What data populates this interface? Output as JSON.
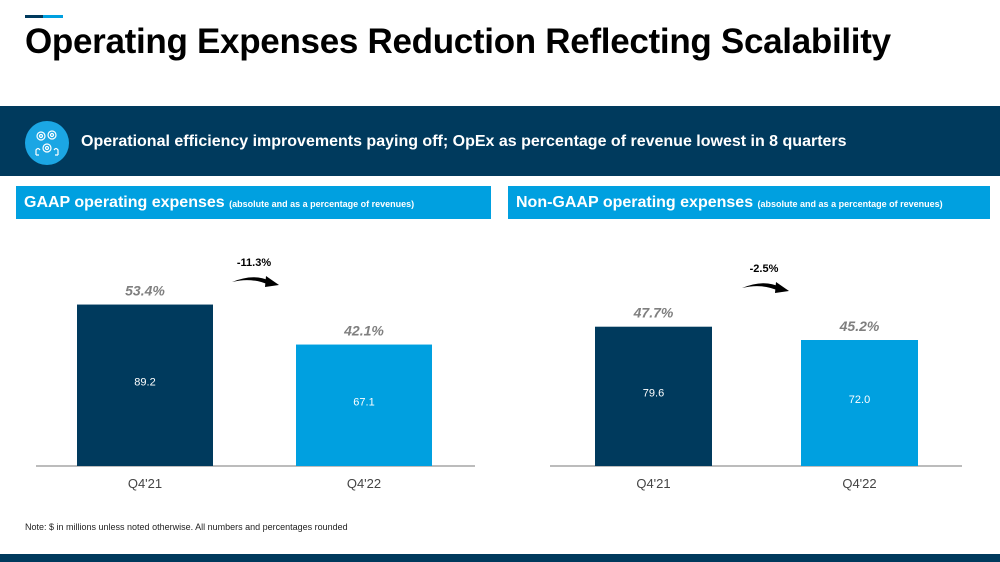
{
  "title": "Operating Expenses Reduction Reflecting Scalability",
  "banner": {
    "icon": "gears-people-icon",
    "text": "Operational efficiency improvements paying off; OpEx as percentage of revenue lowest in 8 quarters"
  },
  "colors": {
    "dark": "#003a5d",
    "light": "#00a0e0",
    "pct_label": "#7f7f7f"
  },
  "note": "Note: $ in millions unless noted otherwise. All numbers and percentages rounded",
  "chart_data": [
    {
      "type": "bar",
      "header_main": "GAAP operating expenses",
      "header_sub": "(absolute and as a percentage of revenues)",
      "categories": [
        "Q4'21",
        "Q4'22"
      ],
      "values": [
        89.2,
        67.1
      ],
      "value_labels": [
        "89.2",
        "67.1"
      ],
      "pct_of_revenue": [
        53.4,
        42.1
      ],
      "pct_labels": [
        "53.4%",
        "42.1%"
      ],
      "change_label": "-11.3%",
      "ylim": [
        0,
        100
      ],
      "grid": false
    },
    {
      "type": "bar",
      "header_main": "Non-GAAP operating expenses",
      "header_sub": "(absolute and as a percentage of revenues)",
      "categories": [
        "Q4'21",
        "Q4'22"
      ],
      "values": [
        79.6,
        72.0
      ],
      "value_labels": [
        "79.6",
        "72.0"
      ],
      "pct_of_revenue": [
        47.7,
        45.2
      ],
      "pct_labels": [
        "47.7%",
        "45.2%"
      ],
      "change_label": "-2.5%",
      "ylim": [
        0,
        100
      ],
      "grid": false
    }
  ]
}
